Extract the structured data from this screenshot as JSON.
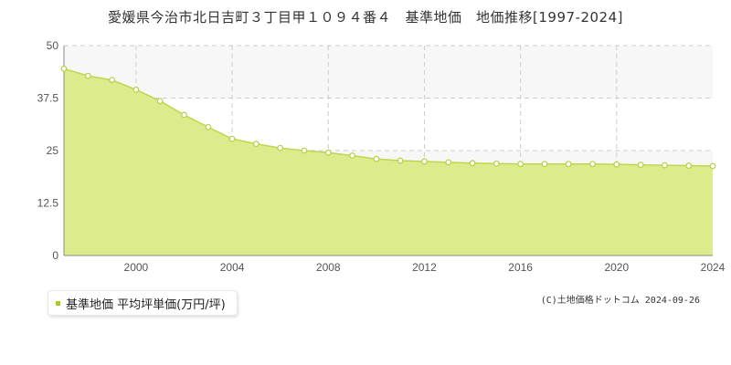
{
  "title": "愛媛県今治市北日吉町３丁目甲１０９４番４　基準地価　地価推移[1997-2024]",
  "legend": {
    "label": "基準地価 平均坪単価(万円/坪)"
  },
  "credit": "(C)土地価格ドットコム 2024-09-26",
  "colors": {
    "fill": "#dcec8c",
    "line": "#bcd84c",
    "marker_stroke": "#b4d043",
    "marker_fill": "#ffffff",
    "band": "#f7f7f7",
    "grid": "#cccccc",
    "legend_swatch": "#aacc22"
  },
  "chart_data": {
    "type": "area",
    "xlim": [
      1997,
      2024
    ],
    "ylim": [
      0,
      50
    ],
    "yticks": [
      "0",
      "12.5",
      "25",
      "37.5",
      "50"
    ],
    "xticks": [
      "2000",
      "2004",
      "2008",
      "2012",
      "2016",
      "2020",
      "2024"
    ],
    "grid": true,
    "legend_position": "bottom-left",
    "series": [
      {
        "name": "基準地価 平均坪単価(万円/坪)",
        "x": [
          1997,
          1998,
          1999,
          2000,
          2001,
          2002,
          2003,
          2004,
          2005,
          2006,
          2007,
          2008,
          2009,
          2010,
          2011,
          2012,
          2013,
          2014,
          2015,
          2016,
          2017,
          2018,
          2019,
          2020,
          2021,
          2022,
          2023,
          2024
        ],
        "values": [
          44.5,
          42.8,
          41.8,
          39.5,
          36.8,
          33.5,
          30.6,
          27.8,
          26.6,
          25.6,
          25.0,
          24.5,
          23.8,
          23.0,
          22.6,
          22.4,
          22.2,
          22.0,
          21.9,
          21.8,
          21.8,
          21.8,
          21.8,
          21.7,
          21.6,
          21.5,
          21.4,
          21.3
        ]
      }
    ]
  }
}
